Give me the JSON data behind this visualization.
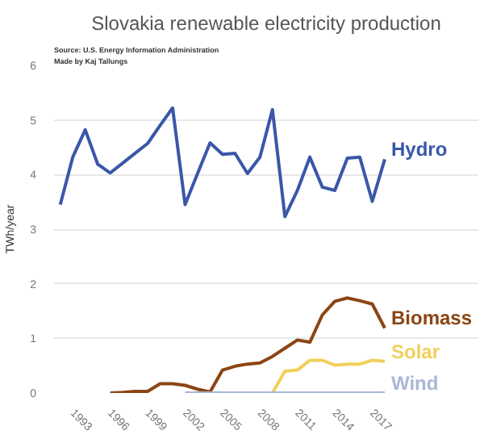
{
  "chart_data": {
    "type": "line",
    "title": "Slovakia renewable electricity production",
    "ylabel": "TWh/year",
    "annotations": [
      "Source: U.S. Energy Information Administration",
      "Made by Kaj Tallungs"
    ],
    "x": [
      1992,
      1993,
      1994,
      1995,
      1996,
      1997,
      1998,
      1999,
      2000,
      2001,
      2002,
      2003,
      2004,
      2005,
      2006,
      2007,
      2008,
      2009,
      2010,
      2011,
      2012,
      2013,
      2014,
      2015,
      2016,
      2017,
      2018
    ],
    "series": [
      {
        "name": "Hydro",
        "color": "#3a57a8",
        "values": [
          3.45,
          4.32,
          4.82,
          4.19,
          4.03,
          4.21,
          4.39,
          4.57,
          4.9,
          5.22,
          3.45,
          4.02,
          4.58,
          4.37,
          4.39,
          4.02,
          4.32,
          5.19,
          3.23,
          3.71,
          4.32,
          3.77,
          3.71,
          4.3,
          4.32,
          3.51,
          4.28
        ]
      },
      {
        "name": "Biomass",
        "color": "#8b4513",
        "values": [
          null,
          null,
          null,
          null,
          0.0,
          0.01,
          0.03,
          0.03,
          0.17,
          0.17,
          0.14,
          0.07,
          0.02,
          0.42,
          0.49,
          0.53,
          0.55,
          0.67,
          0.82,
          0.97,
          0.93,
          1.43,
          1.68,
          1.74,
          1.69,
          1.63,
          1.19
        ]
      },
      {
        "name": "Solar",
        "color": "#f2cf5b",
        "values": [
          null,
          null,
          null,
          null,
          null,
          null,
          null,
          null,
          null,
          null,
          null,
          null,
          null,
          null,
          null,
          null,
          null,
          0.0,
          0.4,
          0.42,
          0.6,
          0.6,
          0.51,
          0.53,
          0.53,
          0.6,
          0.58
        ]
      },
      {
        "name": "Wind",
        "color": "#a9b6d6",
        "values": [
          null,
          null,
          null,
          null,
          null,
          null,
          null,
          null,
          null,
          null,
          0.0,
          0.0,
          0.0,
          0.0,
          0.0,
          0.0,
          0.0,
          0.0,
          0.0,
          0.0,
          0.0,
          0.0,
          0.0,
          0.0,
          0.0,
          0.0,
          0.0
        ]
      }
    ],
    "xlim": [
      1991.5,
      2025.5
    ],
    "ylim": [
      0,
      6
    ],
    "xticks": [
      1993,
      1996,
      1999,
      2002,
      2005,
      2008,
      2011,
      2014,
      2017
    ],
    "yticks": [
      0,
      1,
      2,
      3,
      4,
      5,
      6
    ],
    "grid": "y",
    "marker": "none",
    "line_style": "solid"
  }
}
